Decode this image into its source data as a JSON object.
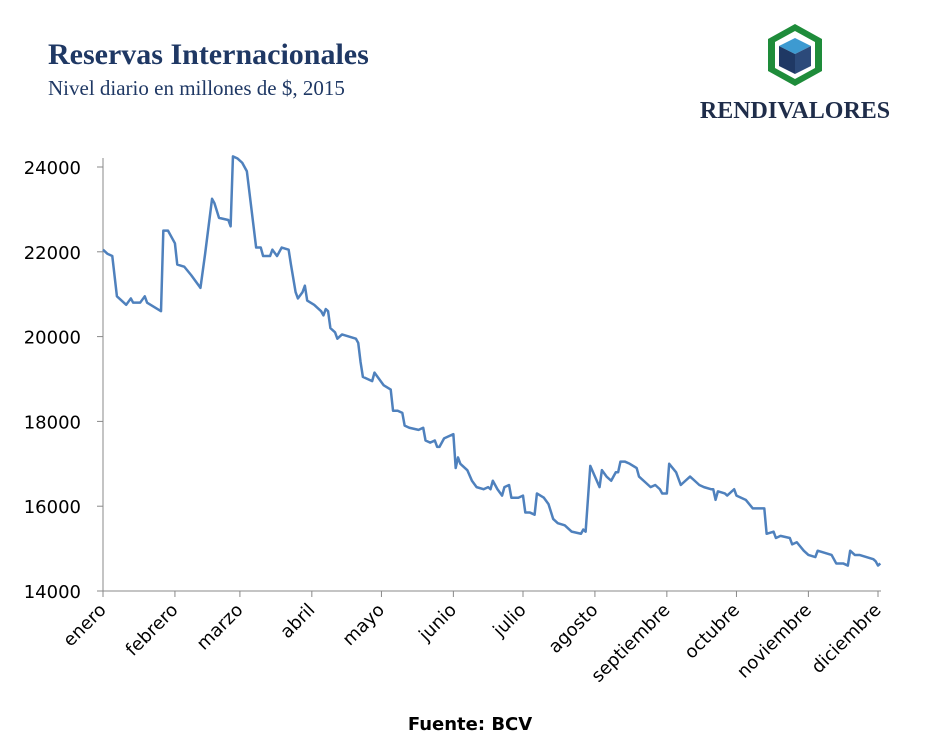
{
  "chart_data": {
    "type": "line",
    "title": "Reservas Internacionales",
    "subtitle": "Nivel diario en millones de $, 2015",
    "source": "Fuente: BCV",
    "color": "#4f81bd",
    "x": [
      1,
      3,
      5,
      7,
      9,
      11,
      13,
      14,
      17,
      19,
      20,
      23,
      26,
      27,
      29,
      31,
      32,
      33,
      36,
      39,
      43,
      45,
      48,
      49,
      51,
      55,
      56,
      57,
      59,
      61,
      63,
      65,
      67,
      69,
      70,
      73,
      74,
      76,
      78,
      81,
      82,
      84,
      85,
      87,
      88,
      89,
      92,
      95,
      96,
      97,
      98,
      99,
      101,
      102,
      104,
      107,
      110,
      111,
      112,
      113,
      115,
      117,
      118,
      120,
      122,
      125,
      126,
      128,
      130,
      131,
      133,
      137,
      139,
      140,
      142,
      144,
      145,
      146,
      148,
      150,
      152,
      153,
      154,
      155,
      158,
      160,
      162,
      165,
      167,
      168,
      169,
      171,
      173,
      174,
      176,
      177,
      180,
      182,
      183,
      185,
      187,
      188,
      191,
      193,
      195,
      197,
      200,
      203,
      207,
      208,
      209,
      211,
      213,
      215,
      216,
      218,
      220,
      222,
      223,
      224,
      226,
      228,
      231,
      232,
      235,
      237,
      239,
      241,
      242,
      244,
      245,
      248,
      250,
      251,
      254,
      256,
      258,
      260,
      263,
      264,
      265,
      266,
      269,
      270,
      273,
      274,
      276,
      278,
      281,
      284,
      286,
      287,
      290,
      291,
      293,
      297,
      298,
      300,
      303,
      305,
      308,
      309,
      312,
      315,
      317,
      320,
      322,
      323,
      325,
      327,
      330,
      333,
      334,
      335,
      336
    ],
    "values": [
      22050,
      21950,
      21900,
      20950,
      20850,
      20750,
      20900,
      20800,
      20800,
      20950,
      20800,
      20700,
      20600,
      22500,
      22500,
      22300,
      22200,
      21700,
      21650,
      21450,
      21150,
      21950,
      23250,
      23150,
      22800,
      22750,
      22600,
      24250,
      24200,
      24100,
      23900,
      23000,
      22100,
      22100,
      21900,
      21900,
      22050,
      21900,
      22100,
      22050,
      21700,
      21050,
      20900,
      21050,
      21200,
      20850,
      20750,
      20600,
      20500,
      20650,
      20600,
      20200,
      20100,
      19950,
      20050,
      20000,
      19950,
      19850,
      19400,
      19050,
      19000,
      18950,
      19150,
      19000,
      18850,
      18750,
      18250,
      18250,
      18200,
      17900,
      17850,
      17800,
      17850,
      17550,
      17500,
      17550,
      17400,
      17400,
      17600,
      17650,
      17700,
      16900,
      17150,
      17000,
      16850,
      16600,
      16450,
      16400,
      16450,
      16400,
      16600,
      16400,
      16250,
      16450,
      16500,
      16200,
      16200,
      16250,
      15850,
      15850,
      15800,
      16300,
      16200,
      16050,
      15700,
      15600,
      15550,
      15400,
      15350,
      15450,
      15400,
      16950,
      16700,
      16450,
      16850,
      16700,
      16600,
      16800,
      16800,
      17050,
      17050,
      17000,
      16900,
      16700,
      16550,
      16450,
      16500,
      16400,
      16300,
      16300,
      17000,
      16800,
      16500,
      16550,
      16700,
      16600,
      16500,
      16450,
      16400,
      16400,
      16150,
      16350,
      16300,
      16250,
      16400,
      16250,
      16200,
      16150,
      15950,
      15950,
      15950,
      15350,
      15400,
      15250,
      15300,
      15250,
      15100,
      15150,
      14950,
      14850,
      14800,
      14950,
      14900,
      14850,
      14650,
      14650,
      14600,
      14950,
      14850,
      14850,
      14800,
      14750,
      14700,
      14600,
      14650
    ],
    "xlim": [
      1,
      335
    ],
    "xticks": [
      {
        "value": 1,
        "label": "enero"
      },
      {
        "value": 32,
        "label": "febrero"
      },
      {
        "value": 60,
        "label": "marzo"
      },
      {
        "value": 91,
        "label": "abril"
      },
      {
        "value": 121,
        "label": "mayo"
      },
      {
        "value": 152,
        "label": "junio"
      },
      {
        "value": 182,
        "label": "julio"
      },
      {
        "value": 213,
        "label": "agosto"
      },
      {
        "value": 244,
        "label": "septiembre"
      },
      {
        "value": 274,
        "label": "octubre"
      },
      {
        "value": 305,
        "label": "noviembre"
      },
      {
        "value": 335,
        "label": "diciembre"
      }
    ],
    "ylim": [
      14000,
      24000
    ],
    "yticks": [
      14000,
      16000,
      18000,
      20000,
      22000,
      24000
    ]
  },
  "logo": {
    "text": "RENDIVALORES"
  }
}
